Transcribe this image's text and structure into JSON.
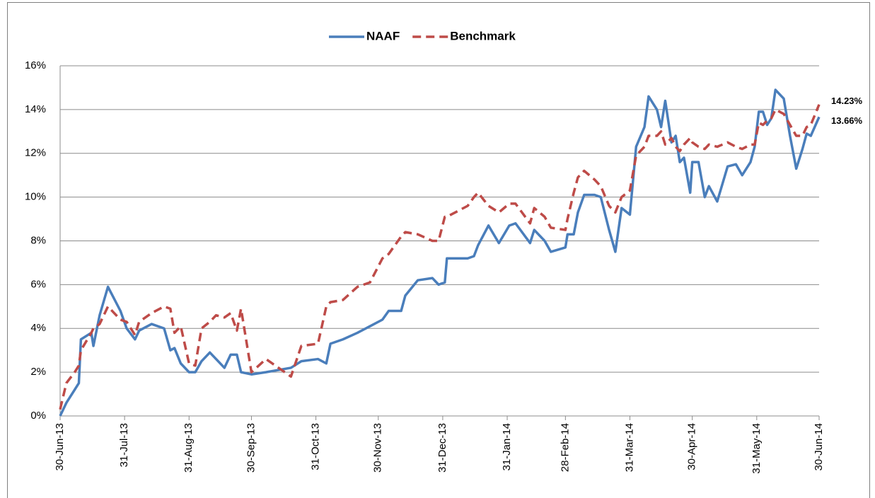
{
  "chart_data": {
    "type": "line",
    "x": [
      "2013-06-30",
      "2013-07-03",
      "2013-07-07",
      "2013-07-09",
      "2013-07-10",
      "2013-07-15",
      "2013-07-16",
      "2013-07-19",
      "2013-07-23",
      "2013-07-29",
      "2013-08-01",
      "2013-08-05",
      "2013-08-07",
      "2013-08-13",
      "2013-08-19",
      "2013-08-22",
      "2013-08-24",
      "2013-08-27",
      "2013-08-31",
      "2013-09-03",
      "2013-09-06",
      "2013-09-10",
      "2013-09-13",
      "2013-09-17",
      "2013-09-20",
      "2013-09-23",
      "2013-09-25",
      "2013-09-30",
      "2013-10-07",
      "2013-10-19",
      "2013-10-24",
      "2013-11-01",
      "2013-11-05",
      "2013-11-07",
      "2013-11-13",
      "2013-11-20",
      "2013-11-26",
      "2013-12-02",
      "2013-12-05",
      "2013-12-11",
      "2013-12-13",
      "2013-12-19",
      "2013-12-26",
      "2013-12-29",
      "2014-01-01",
      "2014-01-02",
      "2014-01-12",
      "2014-01-15",
      "2014-01-17",
      "2014-01-22",
      "2014-01-27",
      "2014-02-01",
      "2014-02-04",
      "2014-02-11",
      "2014-02-13",
      "2014-02-18",
      "2014-02-21",
      "2014-02-28",
      "2014-03-01",
      "2014-03-04",
      "2014-03-06",
      "2014-03-09",
      "2014-03-14",
      "2014-03-17",
      "2014-03-21",
      "2014-03-24",
      "2014-03-27",
      "2014-03-31",
      "2014-04-03",
      "2014-04-07",
      "2014-04-09",
      "2014-04-13",
      "2014-04-15",
      "2014-04-17",
      "2014-04-20",
      "2014-04-22",
      "2014-04-24",
      "2014-04-26",
      "2014-04-29",
      "2014-04-30",
      "2014-05-03",
      "2014-05-06",
      "2014-05-08",
      "2014-05-12",
      "2014-05-17",
      "2014-05-21",
      "2014-05-24",
      "2014-05-28",
      "2014-05-30",
      "2014-06-01",
      "2014-06-03",
      "2014-06-05",
      "2014-06-07",
      "2014-06-09",
      "2014-06-13",
      "2014-06-16",
      "2014-06-19",
      "2014-06-22",
      "2014-06-24",
      "2014-06-26",
      "2014-06-30"
    ],
    "series": [
      {
        "name": "NAAF",
        "color": "#4a7ebb",
        "dash": false,
        "values": [
          0,
          0.6,
          1.2,
          1.5,
          3.5,
          3.8,
          3.2,
          4.6,
          5.9,
          4.8,
          4.0,
          3.5,
          3.9,
          4.2,
          4.0,
          3.0,
          3.1,
          2.4,
          2.0,
          2.0,
          2.5,
          2.9,
          2.6,
          2.2,
          2.8,
          2.8,
          2.0,
          1.9,
          2.0,
          2.2,
          2.5,
          2.6,
          2.4,
          3.3,
          3.5,
          3.8,
          4.1,
          4.4,
          4.8,
          4.8,
          5.5,
          6.2,
          6.3,
          6.0,
          6.1,
          7.2,
          7.2,
          7.3,
          7.8,
          8.7,
          7.9,
          8.7,
          8.8,
          7.9,
          8.5,
          8.0,
          7.5,
          7.7,
          8.3,
          8.3,
          9.3,
          10.1,
          10.1,
          10.0,
          8.5,
          7.5,
          9.5,
          9.2,
          12.3,
          13.2,
          14.6,
          14.0,
          13.2,
          14.4,
          12.5,
          12.8,
          11.6,
          11.8,
          10.2,
          11.6,
          11.6,
          10.0,
          10.5,
          9.8,
          11.4,
          11.5,
          11.0,
          11.6,
          12.3,
          13.9,
          13.9,
          13.3,
          13.6,
          14.9,
          14.5,
          12.8,
          11.3,
          12.2,
          12.9,
          12.8,
          13.66
        ]
      },
      {
        "name": "Benchmark",
        "color": "#be4b48",
        "dash": true,
        "values": [
          0.3,
          1.5,
          2.0,
          2.3,
          3.0,
          3.8,
          4.0,
          4.2,
          5.0,
          4.4,
          4.3,
          3.7,
          4.3,
          4.7,
          5.0,
          4.9,
          3.8,
          4.1,
          2.4,
          2.3,
          4.0,
          4.3,
          4.6,
          4.5,
          4.7,
          3.9,
          4.9,
          2.0,
          2.6,
          1.8,
          3.2,
          3.3,
          5.0,
          5.2,
          5.3,
          5.9,
          6.1,
          7.2,
          7.4,
          8.2,
          8.4,
          8.3,
          8.0,
          8.0,
          9.1,
          9.1,
          9.6,
          10.0,
          10.2,
          9.6,
          9.3,
          9.7,
          9.7,
          8.8,
          9.5,
          9.1,
          8.6,
          8.5,
          9.0,
          10.2,
          10.9,
          11.2,
          10.8,
          10.5,
          9.6,
          9.3,
          10.0,
          10.3,
          11.9,
          12.3,
          12.8,
          12.8,
          13.0,
          12.4,
          12.7,
          12.3,
          12.1,
          12.4,
          12.7,
          12.5,
          12.3,
          12.2,
          12.4,
          12.3,
          12.5,
          12.3,
          12.2,
          12.4,
          12.4,
          13.4,
          13.3,
          13.5,
          13.6,
          14.0,
          13.8,
          13.3,
          12.8,
          12.8,
          13.2,
          13.3,
          14.23
        ]
      }
    ],
    "xlim": [
      "2013-06-30",
      "2014-06-30"
    ],
    "xticks": [
      {
        "value": "2013-06-30",
        "label": "30-Jun-13"
      },
      {
        "value": "2013-07-31",
        "label": "31-Jul-13"
      },
      {
        "value": "2013-08-31",
        "label": "31-Aug-13"
      },
      {
        "value": "2013-09-30",
        "label": "30-Sep-13"
      },
      {
        "value": "2013-10-31",
        "label": "31-Oct-13"
      },
      {
        "value": "2013-11-30",
        "label": "30-Nov-13"
      },
      {
        "value": "2013-12-31",
        "label": "31-Dec-13"
      },
      {
        "value": "2014-01-31",
        "label": "31-Jan-14"
      },
      {
        "value": "2014-02-28",
        "label": "28-Feb-14"
      },
      {
        "value": "2014-03-31",
        "label": "31-Mar-14"
      },
      {
        "value": "2014-04-30",
        "label": "30-Apr-14"
      },
      {
        "value": "2014-05-31",
        "label": "31-May-14"
      },
      {
        "value": "2014-06-30",
        "label": "30-Jun-14"
      }
    ],
    "ylim": [
      0,
      16
    ],
    "yticks": [
      {
        "value": 0,
        "label": "0%"
      },
      {
        "value": 2,
        "label": "2%"
      },
      {
        "value": 4,
        "label": "4%"
      },
      {
        "value": 6,
        "label": "6%"
      },
      {
        "value": 8,
        "label": "8%"
      },
      {
        "value": 10,
        "label": "10%"
      },
      {
        "value": 12,
        "label": "12%"
      },
      {
        "value": 14,
        "label": "14%"
      },
      {
        "value": 16,
        "label": "16%"
      }
    ],
    "grid": true,
    "legend": "top",
    "annotations": [
      {
        "text": "14.23%",
        "value": 14.23
      },
      {
        "text": "13.66%",
        "value": 13.66
      }
    ]
  }
}
